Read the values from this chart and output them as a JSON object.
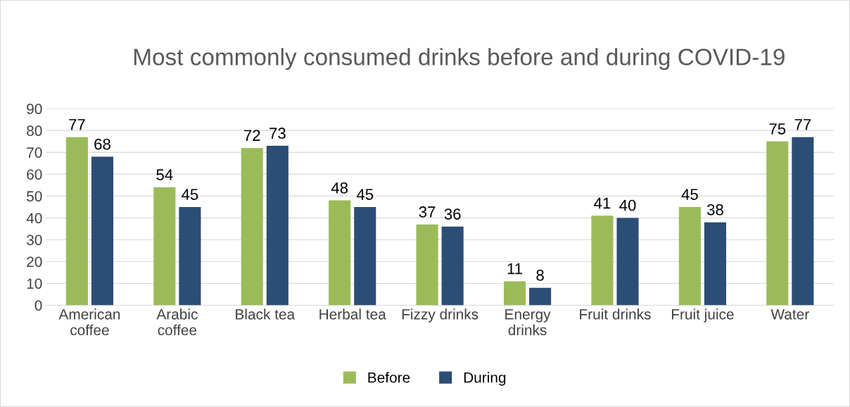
{
  "chart_data": {
    "type": "bar",
    "title": "Most commonly consumed drinks before and during COVID-19",
    "categories": [
      "American coffee",
      "Arabic coffee",
      "Black tea",
      "Herbal tea",
      "Fizzy drinks",
      "Energy drinks",
      "Fruit drinks",
      "Fruit juice",
      "Water"
    ],
    "series": [
      {
        "name": "Before",
        "color": "#9bbb59",
        "values": [
          77,
          54,
          72,
          48,
          37,
          11,
          41,
          45,
          75
        ]
      },
      {
        "name": "During",
        "color": "#2c4d75",
        "values": [
          68,
          45,
          73,
          45,
          36,
          8,
          40,
          38,
          77
        ]
      }
    ],
    "ylim": [
      0,
      90
    ],
    "yticks": [
      0,
      10,
      20,
      30,
      40,
      50,
      60,
      70,
      80,
      90
    ],
    "grid": "y",
    "legend": "bottom",
    "data_labels": true
  }
}
